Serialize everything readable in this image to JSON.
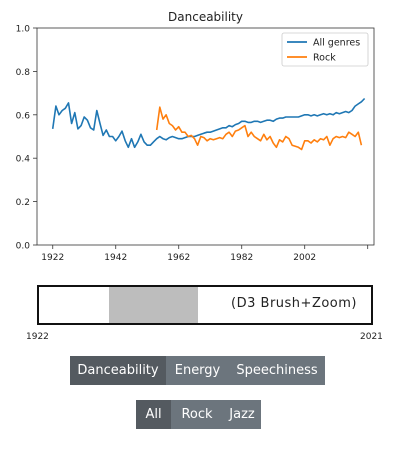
{
  "chart_data": {
    "type": "line",
    "title": "Danceability",
    "xlabel": "",
    "ylabel": "",
    "xlim": [
      1917,
      2024
    ],
    "ylim": [
      0,
      1
    ],
    "x_ticks": [
      "1922",
      "1942",
      "1962",
      "1982",
      "2002"
    ],
    "x_tick_values": [
      1922,
      1942,
      1962,
      1982,
      2002
    ],
    "y_ticks": [
      "0.0",
      "0.2",
      "0.4",
      "0.6",
      "0.8",
      "1.0"
    ],
    "y_tick_values": [
      0,
      0.2,
      0.4,
      0.6,
      0.8,
      1.0
    ],
    "grid": false,
    "legend_position": "top-right",
    "series": [
      {
        "name": "All genres",
        "color": "#1f77b4",
        "x": [
          1922,
          1923,
          1924,
          1925,
          1926,
          1927,
          1928,
          1929,
          1930,
          1931,
          1932,
          1933,
          1934,
          1935,
          1936,
          1937,
          1938,
          1939,
          1940,
          1941,
          1942,
          1943,
          1944,
          1945,
          1946,
          1947,
          1948,
          1949,
          1950,
          1951,
          1952,
          1953,
          1954,
          1955,
          1956,
          1957,
          1958,
          1959,
          1960,
          1961,
          1962,
          1963,
          1964,
          1965,
          1966,
          1967,
          1968,
          1969,
          1970,
          1971,
          1972,
          1973,
          1974,
          1975,
          1976,
          1977,
          1978,
          1979,
          1980,
          1981,
          1982,
          1983,
          1984,
          1985,
          1986,
          1987,
          1988,
          1989,
          1990,
          1991,
          1992,
          1993,
          1994,
          1995,
          1996,
          1997,
          1998,
          1999,
          2000,
          2001,
          2002,
          2003,
          2004,
          2005,
          2006,
          2007,
          2008,
          2009,
          2010,
          2011,
          2012,
          2013,
          2014,
          2015,
          2016,
          2017,
          2018,
          2019,
          2020,
          2021
        ],
        "values": [
          0.535,
          0.64,
          0.6,
          0.62,
          0.63,
          0.655,
          0.56,
          0.61,
          0.535,
          0.55,
          0.59,
          0.575,
          0.54,
          0.53,
          0.62,
          0.56,
          0.505,
          0.53,
          0.5,
          0.5,
          0.48,
          0.5,
          0.525,
          0.48,
          0.45,
          0.49,
          0.45,
          0.475,
          0.51,
          0.475,
          0.46,
          0.46,
          0.475,
          0.49,
          0.5,
          0.49,
          0.485,
          0.495,
          0.5,
          0.495,
          0.49,
          0.49,
          0.495,
          0.5,
          0.5,
          0.5,
          0.505,
          0.51,
          0.515,
          0.52,
          0.52,
          0.525,
          0.53,
          0.535,
          0.54,
          0.54,
          0.55,
          0.545,
          0.555,
          0.56,
          0.57,
          0.57,
          0.565,
          0.565,
          0.57,
          0.57,
          0.565,
          0.57,
          0.575,
          0.575,
          0.57,
          0.58,
          0.585,
          0.585,
          0.59,
          0.59,
          0.59,
          0.59,
          0.59,
          0.595,
          0.6,
          0.6,
          0.595,
          0.6,
          0.595,
          0.6,
          0.605,
          0.6,
          0.605,
          0.6,
          0.61,
          0.605,
          0.61,
          0.615,
          0.61,
          0.62,
          0.64,
          0.65,
          0.66,
          0.675
        ]
      },
      {
        "name": "Rock",
        "color": "#ff7f0e",
        "x": [
          1955,
          1956,
          1957,
          1958,
          1959,
          1960,
          1961,
          1962,
          1963,
          1964,
          1965,
          1966,
          1967,
          1968,
          1969,
          1970,
          1971,
          1972,
          1973,
          1974,
          1975,
          1976,
          1977,
          1978,
          1979,
          1980,
          1981,
          1982,
          1983,
          1984,
          1985,
          1986,
          1987,
          1988,
          1989,
          1990,
          1991,
          1992,
          1993,
          1994,
          1995,
          1996,
          1997,
          1998,
          1999,
          2000,
          2001,
          2002,
          2003,
          2004,
          2005,
          2006,
          2007,
          2008,
          2009,
          2010,
          2011,
          2012,
          2013,
          2014,
          2015,
          2016,
          2017,
          2018,
          2019,
          2020
        ],
        "values": [
          0.53,
          0.635,
          0.58,
          0.6,
          0.56,
          0.55,
          0.53,
          0.545,
          0.52,
          0.52,
          0.5,
          0.505,
          0.49,
          0.46,
          0.5,
          0.495,
          0.48,
          0.49,
          0.485,
          0.49,
          0.495,
          0.49,
          0.51,
          0.52,
          0.5,
          0.525,
          0.53,
          0.54,
          0.55,
          0.5,
          0.52,
          0.5,
          0.49,
          0.48,
          0.51,
          0.485,
          0.5,
          0.47,
          0.45,
          0.485,
          0.475,
          0.5,
          0.49,
          0.46,
          0.455,
          0.45,
          0.44,
          0.48,
          0.48,
          0.47,
          0.485,
          0.475,
          0.49,
          0.485,
          0.5,
          0.46,
          0.49,
          0.5,
          0.495,
          0.5,
          0.495,
          0.52,
          0.51,
          0.5,
          0.52,
          0.46
        ]
      }
    ]
  },
  "brush": {
    "note": "(D3 Brush+Zoom)",
    "min_label": "1922",
    "max_label": "2021",
    "range_min": 1922,
    "range_max": 2021,
    "selection_start_fraction": 0.21,
    "selection_end_fraction": 0.48
  },
  "metric_buttons": [
    {
      "label": "Danceability",
      "active": true
    },
    {
      "label": "Energy",
      "active": false
    },
    {
      "label": "Speechiness",
      "active": false
    }
  ],
  "genre_buttons": [
    {
      "label": "All",
      "active": true
    },
    {
      "label": "Rock",
      "active": false
    },
    {
      "label": "Jazz",
      "active": false
    }
  ]
}
